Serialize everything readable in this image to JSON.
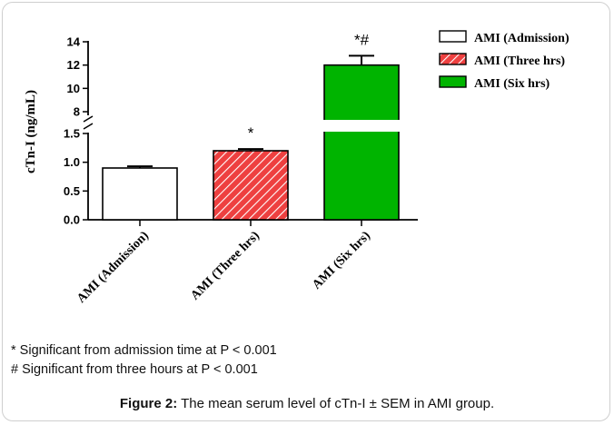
{
  "chart_data": {
    "type": "bar",
    "ylabel": "cTn-I  (ng/mL)",
    "categories": [
      "AMI (Admission)",
      "AMI (Three hrs)",
      "AMI (Six hrs)"
    ],
    "values": [
      0.9,
      1.2,
      12.0
    ],
    "errors": [
      0.03,
      0.03,
      0.8
    ],
    "annotations": [
      "",
      "*",
      "*#"
    ],
    "axis_break": true,
    "lower_ticks": [
      "0.0",
      "0.5",
      "1.0",
      "1.5"
    ],
    "upper_ticks": [
      "8",
      "10",
      "12",
      "14"
    ],
    "legend": [
      "AMI (Admission)",
      "AMI (Three hrs)",
      "AMI (Six hrs)"
    ],
    "legend_position": "top-right",
    "colors": {
      "admission": "#ffffff",
      "three": "#ee4040",
      "six": "#00b400",
      "hatch": "#ffffff"
    }
  },
  "notes": [
    "* Significant from admission time at P < 0.001",
    "# Significant from three hours at P < 0.001"
  ],
  "caption": {
    "label": "Figure 2:",
    "text": " The mean serum level of cTn-I ± SEM in AMI group."
  }
}
